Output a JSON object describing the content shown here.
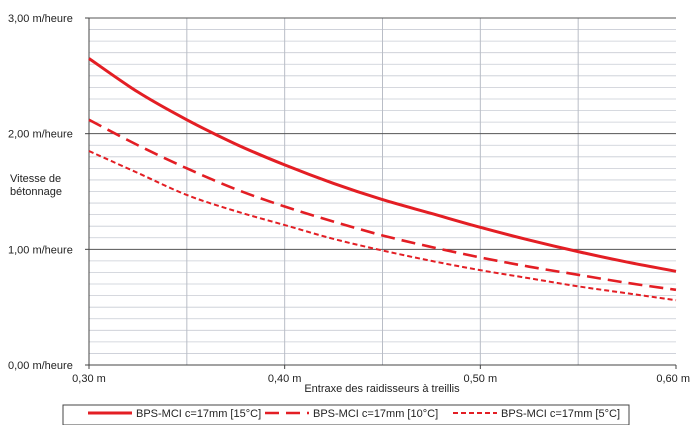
{
  "chart_data": {
    "type": "line",
    "title": "",
    "xlabel": "Entraxe des raidisseurs à treillis",
    "ylabel": [
      "Vitesse de",
      "bétonnage"
    ],
    "xlim": [
      0.3,
      0.6
    ],
    "ylim": [
      0.0,
      3.0
    ],
    "x_ticks": [
      {
        "value": 0.3,
        "label": "0,30 m"
      },
      {
        "value": 0.4,
        "label": "0,40 m"
      },
      {
        "value": 0.5,
        "label": "0,50 m"
      },
      {
        "value": 0.6,
        "label": "0,60 m"
      }
    ],
    "y_ticks": [
      {
        "value": 0.0,
        "label": "0,00 m/heure"
      },
      {
        "value": 1.0,
        "label": "1,00 m/heure"
      },
      {
        "value": 2.0,
        "label": "2,00 m/heure"
      },
      {
        "value": 3.0,
        "label": "3,00 m/heure"
      }
    ],
    "grid": true,
    "legend_position": "bottom",
    "x": [
      0.3,
      0.325,
      0.35,
      0.375,
      0.4,
      0.425,
      0.45,
      0.475,
      0.5,
      0.525,
      0.55,
      0.575,
      0.6
    ],
    "series": [
      {
        "name": "BPS-MCI c=17mm [15°C]",
        "style": "solid",
        "color": "#e31e24",
        "values": [
          2.65,
          2.36,
          2.12,
          1.91,
          1.73,
          1.57,
          1.43,
          1.31,
          1.19,
          1.08,
          0.98,
          0.89,
          0.81
        ]
      },
      {
        "name": "BPS-MCI c=17mm [10°C]",
        "style": "dashed",
        "color": "#e31e24",
        "values": [
          2.12,
          1.9,
          1.7,
          1.52,
          1.37,
          1.24,
          1.12,
          1.02,
          0.93,
          0.85,
          0.78,
          0.71,
          0.65
        ]
      },
      {
        "name": "BPS-MCI c=17mm [5°C]",
        "style": "dotted",
        "color": "#e31e24",
        "values": [
          1.85,
          1.66,
          1.47,
          1.33,
          1.21,
          1.09,
          0.99,
          0.9,
          0.82,
          0.75,
          0.68,
          0.62,
          0.56
        ]
      }
    ]
  }
}
